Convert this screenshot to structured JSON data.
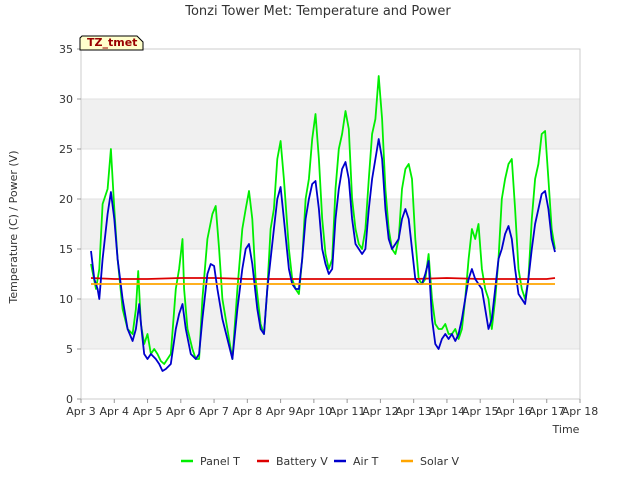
{
  "chart_data": {
    "type": "line",
    "title": "Tonzi Tower Met: Temperature and Power",
    "xlabel": "Time",
    "ylabel": "Temperature (C) / Power (V)",
    "badge": "TZ_tmet",
    "xlim": [
      3,
      18
    ],
    "ylim": [
      0,
      35
    ],
    "x_ticks": [
      {
        "value": 3,
        "label": "Apr 3"
      },
      {
        "value": 4,
        "label": "Apr 4"
      },
      {
        "value": 5,
        "label": "Apr 5"
      },
      {
        "value": 6,
        "label": "Apr 6"
      },
      {
        "value": 7,
        "label": "Apr 7"
      },
      {
        "value": 8,
        "label": "Apr 8"
      },
      {
        "value": 9,
        "label": "Apr 9"
      },
      {
        "value": 10,
        "label": "Apr 10"
      },
      {
        "value": 11,
        "label": "Apr 11"
      },
      {
        "value": 12,
        "label": "Apr 12"
      },
      {
        "value": 13,
        "label": "Apr 13"
      },
      {
        "value": 14,
        "label": "Apr 14"
      },
      {
        "value": 15,
        "label": "Apr 15"
      },
      {
        "value": 16,
        "label": "Apr 16"
      },
      {
        "value": 17,
        "label": "Apr 17"
      },
      {
        "value": 18,
        "label": "Apr 18"
      }
    ],
    "y_ticks": [
      {
        "value": 0,
        "label": "0"
      },
      {
        "value": 5,
        "label": "5"
      },
      {
        "value": 10,
        "label": "10"
      },
      {
        "value": 15,
        "label": "15"
      },
      {
        "value": 20,
        "label": "20"
      },
      {
        "value": 25,
        "label": "25"
      },
      {
        "value": 30,
        "label": "30"
      },
      {
        "value": 35,
        "label": "35"
      }
    ],
    "series": [
      {
        "name": "Panel T",
        "color": "#00ee00",
        "points": [
          [
            3.3,
            13.5
          ],
          [
            3.45,
            11
          ],
          [
            3.55,
            13
          ],
          [
            3.65,
            19.5
          ],
          [
            3.8,
            21
          ],
          [
            3.9,
            25
          ],
          [
            4.0,
            19
          ],
          [
            4.1,
            14
          ],
          [
            4.25,
            9
          ],
          [
            4.4,
            7
          ],
          [
            4.55,
            6.5
          ],
          [
            4.65,
            9
          ],
          [
            4.72,
            12.8
          ],
          [
            4.8,
            7.5
          ],
          [
            4.9,
            5.5
          ],
          [
            5.0,
            6.5
          ],
          [
            5.1,
            4.5
          ],
          [
            5.2,
            5
          ],
          [
            5.3,
            4.5
          ],
          [
            5.4,
            3.8
          ],
          [
            5.5,
            3.5
          ],
          [
            5.7,
            4.5
          ],
          [
            5.85,
            11
          ],
          [
            5.95,
            13
          ],
          [
            6.05,
            16
          ],
          [
            6.1,
            11
          ],
          [
            6.2,
            7
          ],
          [
            6.35,
            5
          ],
          [
            6.45,
            4
          ],
          [
            6.55,
            4
          ],
          [
            6.65,
            10
          ],
          [
            6.8,
            16
          ],
          [
            6.95,
            18.5
          ],
          [
            7.05,
            19.3
          ],
          [
            7.15,
            15
          ],
          [
            7.25,
            10
          ],
          [
            7.4,
            7
          ],
          [
            7.55,
            4
          ],
          [
            7.7,
            11
          ],
          [
            7.85,
            17
          ],
          [
            7.95,
            19
          ],
          [
            8.05,
            20.8
          ],
          [
            8.15,
            18
          ],
          [
            8.25,
            12
          ],
          [
            8.4,
            7.5
          ],
          [
            8.5,
            6.5
          ],
          [
            8.6,
            11
          ],
          [
            8.7,
            17
          ],
          [
            8.8,
            19
          ],
          [
            8.9,
            24
          ],
          [
            9.0,
            25.8
          ],
          [
            9.1,
            22
          ],
          [
            9.25,
            15
          ],
          [
            9.35,
            12
          ],
          [
            9.45,
            11
          ],
          [
            9.55,
            10.5
          ],
          [
            9.65,
            14
          ],
          [
            9.75,
            20
          ],
          [
            9.85,
            22
          ],
          [
            9.95,
            26
          ],
          [
            10.05,
            28.5
          ],
          [
            10.15,
            24
          ],
          [
            10.25,
            18
          ],
          [
            10.35,
            14.5
          ],
          [
            10.45,
            13
          ],
          [
            10.55,
            14
          ],
          [
            10.65,
            21
          ],
          [
            10.75,
            25
          ],
          [
            10.85,
            26.5
          ],
          [
            10.95,
            28.8
          ],
          [
            11.05,
            27
          ],
          [
            11.15,
            20
          ],
          [
            11.25,
            17
          ],
          [
            11.35,
            15.5
          ],
          [
            11.45,
            15
          ],
          [
            11.55,
            17
          ],
          [
            11.65,
            22
          ],
          [
            11.75,
            26.5
          ],
          [
            11.85,
            28
          ],
          [
            11.95,
            32.3
          ],
          [
            12.05,
            28
          ],
          [
            12.15,
            21
          ],
          [
            12.25,
            17
          ],
          [
            12.35,
            15
          ],
          [
            12.45,
            14.5
          ],
          [
            12.55,
            16
          ],
          [
            12.65,
            21
          ],
          [
            12.75,
            23
          ],
          [
            12.85,
            23.5
          ],
          [
            12.95,
            22
          ],
          [
            13.05,
            16
          ],
          [
            13.15,
            12
          ],
          [
            13.25,
            11.5
          ],
          [
            13.35,
            12
          ],
          [
            13.45,
            14.5
          ],
          [
            13.55,
            10
          ],
          [
            13.65,
            7.5
          ],
          [
            13.75,
            7
          ],
          [
            13.85,
            7
          ],
          [
            13.95,
            7.5
          ],
          [
            14.05,
            6.5
          ],
          [
            14.15,
            6.5
          ],
          [
            14.25,
            7
          ],
          [
            14.35,
            6
          ],
          [
            14.45,
            7
          ],
          [
            14.55,
            10
          ],
          [
            14.65,
            14
          ],
          [
            14.75,
            17
          ],
          [
            14.85,
            16
          ],
          [
            14.95,
            17.5
          ],
          [
            15.05,
            13
          ],
          [
            15.15,
            11
          ],
          [
            15.25,
            10
          ],
          [
            15.35,
            7
          ],
          [
            15.45,
            10
          ],
          [
            15.55,
            14
          ],
          [
            15.65,
            20
          ],
          [
            15.75,
            22
          ],
          [
            15.85,
            23.5
          ],
          [
            15.95,
            24
          ],
          [
            16.05,
            19
          ],
          [
            16.15,
            13
          ],
          [
            16.25,
            11
          ],
          [
            16.35,
            10
          ],
          [
            16.45,
            12
          ],
          [
            16.55,
            18
          ],
          [
            16.65,
            22
          ],
          [
            16.75,
            23.5
          ],
          [
            16.85,
            26.5
          ],
          [
            16.95,
            26.8
          ],
          [
            17.05,
            22
          ],
          [
            17.15,
            17
          ],
          [
            17.25,
            15
          ]
        ]
      },
      {
        "name": "Battery V",
        "color": "#dd0000",
        "points": [
          [
            3.3,
            12.1
          ],
          [
            4.0,
            12.0
          ],
          [
            5.0,
            12.0
          ],
          [
            6.0,
            12.1
          ],
          [
            7.0,
            12.1
          ],
          [
            8.0,
            12.0
          ],
          [
            9.0,
            12.0
          ],
          [
            10.0,
            12.0
          ],
          [
            11.0,
            12.0
          ],
          [
            12.0,
            12.0
          ],
          [
            13.0,
            12.0
          ],
          [
            14.0,
            12.1
          ],
          [
            15.0,
            12.0
          ],
          [
            16.0,
            12.0
          ],
          [
            17.0,
            12.0
          ],
          [
            17.25,
            12.1
          ]
        ]
      },
      {
        "name": "Air T",
        "color": "#0000cc",
        "points": [
          [
            3.3,
            14.8
          ],
          [
            3.4,
            12
          ],
          [
            3.5,
            11
          ],
          [
            3.55,
            10
          ],
          [
            3.65,
            14
          ],
          [
            3.8,
            18.5
          ],
          [
            3.9,
            20.7
          ],
          [
            4.0,
            18
          ],
          [
            4.1,
            14
          ],
          [
            4.25,
            10
          ],
          [
            4.4,
            7
          ],
          [
            4.55,
            5.8
          ],
          [
            4.65,
            7
          ],
          [
            4.75,
            9.5
          ],
          [
            4.82,
            7
          ],
          [
            4.9,
            4.5
          ],
          [
            5.0,
            4
          ],
          [
            5.1,
            4.5
          ],
          [
            5.25,
            4
          ],
          [
            5.35,
            3.5
          ],
          [
            5.45,
            2.8
          ],
          [
            5.55,
            3
          ],
          [
            5.7,
            3.5
          ],
          [
            5.85,
            7
          ],
          [
            5.95,
            8.5
          ],
          [
            6.05,
            9.5
          ],
          [
            6.15,
            7
          ],
          [
            6.3,
            4.5
          ],
          [
            6.45,
            4
          ],
          [
            6.55,
            4.5
          ],
          [
            6.65,
            8
          ],
          [
            6.8,
            12.5
          ],
          [
            6.9,
            13.5
          ],
          [
            7.0,
            13.3
          ],
          [
            7.1,
            11
          ],
          [
            7.25,
            8
          ],
          [
            7.4,
            6
          ],
          [
            7.55,
            4
          ],
          [
            7.7,
            9
          ],
          [
            7.85,
            13
          ],
          [
            7.95,
            15
          ],
          [
            8.05,
            15.5
          ],
          [
            8.15,
            13.5
          ],
          [
            8.3,
            9
          ],
          [
            8.4,
            7
          ],
          [
            8.5,
            6.5
          ],
          [
            8.6,
            11
          ],
          [
            8.7,
            14
          ],
          [
            8.8,
            17
          ],
          [
            8.9,
            20
          ],
          [
            9.0,
            21.2
          ],
          [
            9.1,
            18
          ],
          [
            9.25,
            13
          ],
          [
            9.35,
            11.5
          ],
          [
            9.45,
            11
          ],
          [
            9.55,
            11
          ],
          [
            9.65,
            14
          ],
          [
            9.75,
            18
          ],
          [
            9.85,
            20
          ],
          [
            9.95,
            21.5
          ],
          [
            10.05,
            21.8
          ],
          [
            10.15,
            19
          ],
          [
            10.25,
            15
          ],
          [
            10.35,
            13.5
          ],
          [
            10.45,
            12.5
          ],
          [
            10.55,
            13
          ],
          [
            10.65,
            18
          ],
          [
            10.75,
            21
          ],
          [
            10.85,
            23
          ],
          [
            10.95,
            23.7
          ],
          [
            11.05,
            22
          ],
          [
            11.15,
            18
          ],
          [
            11.25,
            15.5
          ],
          [
            11.35,
            15
          ],
          [
            11.45,
            14.5
          ],
          [
            11.55,
            15
          ],
          [
            11.65,
            19
          ],
          [
            11.75,
            22
          ],
          [
            11.85,
            24
          ],
          [
            11.95,
            26
          ],
          [
            12.05,
            24
          ],
          [
            12.15,
            19
          ],
          [
            12.25,
            16
          ],
          [
            12.35,
            15
          ],
          [
            12.45,
            15.5
          ],
          [
            12.55,
            16
          ],
          [
            12.65,
            18
          ],
          [
            12.75,
            19
          ],
          [
            12.85,
            18
          ],
          [
            12.95,
            15
          ],
          [
            13.05,
            12
          ],
          [
            13.15,
            11.5
          ],
          [
            13.25,
            11.5
          ],
          [
            13.35,
            12.5
          ],
          [
            13.45,
            13.8
          ],
          [
            13.55,
            8
          ],
          [
            13.65,
            5.5
          ],
          [
            13.75,
            5
          ],
          [
            13.85,
            6
          ],
          [
            13.95,
            6.5
          ],
          [
            14.05,
            6
          ],
          [
            14.15,
            6.5
          ],
          [
            14.25,
            5.8
          ],
          [
            14.35,
            6.5
          ],
          [
            14.45,
            8
          ],
          [
            14.55,
            10
          ],
          [
            14.65,
            12
          ],
          [
            14.75,
            13
          ],
          [
            14.85,
            12
          ],
          [
            14.95,
            11.5
          ],
          [
            15.05,
            11
          ],
          [
            15.15,
            9
          ],
          [
            15.25,
            7
          ],
          [
            15.35,
            8
          ],
          [
            15.45,
            11
          ],
          [
            15.55,
            14
          ],
          [
            15.65,
            15
          ],
          [
            15.75,
            16.5
          ],
          [
            15.85,
            17.3
          ],
          [
            15.95,
            16
          ],
          [
            16.05,
            13
          ],
          [
            16.15,
            10.5
          ],
          [
            16.25,
            10
          ],
          [
            16.35,
            9.5
          ],
          [
            16.45,
            12
          ],
          [
            16.55,
            15
          ],
          [
            16.65,
            17.5
          ],
          [
            16.75,
            19
          ],
          [
            16.85,
            20.5
          ],
          [
            16.95,
            20.8
          ],
          [
            17.05,
            19
          ],
          [
            17.15,
            16
          ],
          [
            17.25,
            14.7
          ]
        ]
      },
      {
        "name": "Solar V",
        "color": "#ffa500",
        "points": [
          [
            3.3,
            11.5
          ],
          [
            4.0,
            11.5
          ],
          [
            5.0,
            11.5
          ],
          [
            6.0,
            11.5
          ],
          [
            7.0,
            11.5
          ],
          [
            8.0,
            11.5
          ],
          [
            9.0,
            11.5
          ],
          [
            10.0,
            11.5
          ],
          [
            11.0,
            11.5
          ],
          [
            12.0,
            11.5
          ],
          [
            13.0,
            11.5
          ],
          [
            14.0,
            11.5
          ],
          [
            15.0,
            11.5
          ],
          [
            16.0,
            11.5
          ],
          [
            17.0,
            11.5
          ],
          [
            17.25,
            11.5
          ]
        ]
      }
    ],
    "legend_position": "bottom"
  }
}
